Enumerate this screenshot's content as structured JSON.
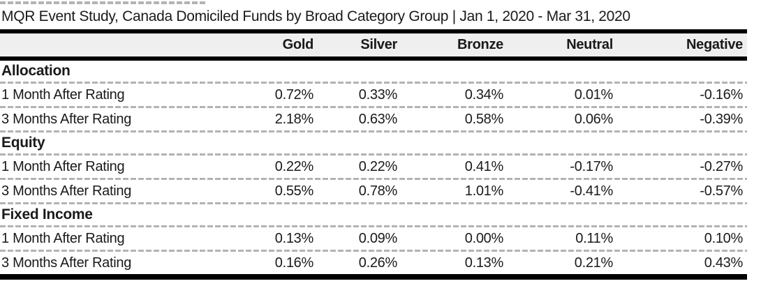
{
  "colors": {
    "text": "#1a1a1a",
    "rule": "#000000",
    "dashed_separator": "#b3b3b3",
    "header_background": "#efefef"
  },
  "chart_data": {
    "type": "table",
    "title": "MQR Event Study, Canada Domiciled Funds by Broad Category Group | Jan 1, 2020 - Mar 31, 2020",
    "columns": [
      "Gold",
      "Silver",
      "Bronze",
      "Neutral",
      "Negative"
    ],
    "groups": [
      {
        "label": "Allocation",
        "rows": [
          {
            "label": "1 Month After Rating",
            "values": [
              "0.72%",
              "0.33%",
              "0.34%",
              "0.01%",
              "-0.16%"
            ]
          },
          {
            "label": "3 Months After Rating",
            "values": [
              "2.18%",
              "0.63%",
              "0.58%",
              "0.06%",
              "-0.39%"
            ]
          }
        ]
      },
      {
        "label": "Equity",
        "rows": [
          {
            "label": "1 Month After Rating",
            "values": [
              "0.22%",
              "0.22%",
              "0.41%",
              "-0.17%",
              "-0.27%"
            ]
          },
          {
            "label": "3 Months After Rating",
            "values": [
              "0.55%",
              "0.78%",
              "1.01%",
              "-0.41%",
              "-0.57%"
            ]
          }
        ]
      },
      {
        "label": "Fixed Income",
        "rows": [
          {
            "label": "1 Month After Rating",
            "values": [
              "0.13%",
              "0.09%",
              "0.00%",
              "0.11%",
              "0.10%"
            ]
          },
          {
            "label": "3 Months After Rating",
            "values": [
              "0.16%",
              "0.26%",
              "0.13%",
              "0.21%",
              "0.43%"
            ]
          }
        ]
      }
    ]
  }
}
